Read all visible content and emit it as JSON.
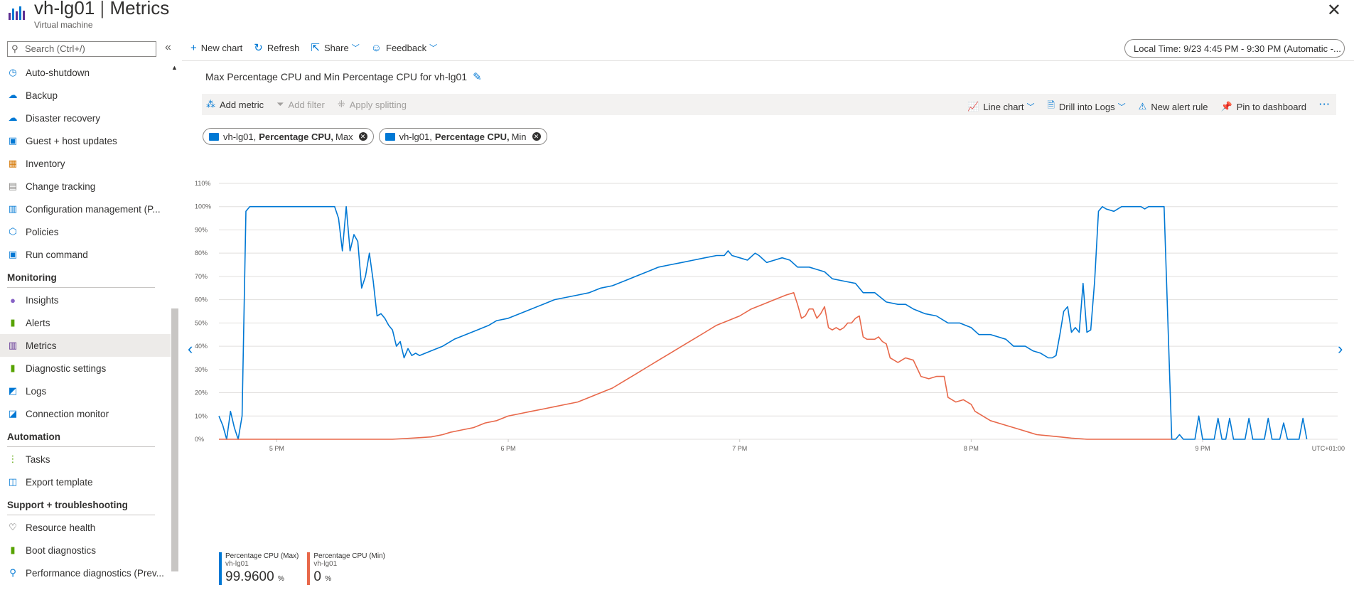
{
  "header": {
    "resource_name": "vh-lg01",
    "separator": "|",
    "page": "Metrics",
    "subtitle": "Virtual machine",
    "close_icon": "close-icon"
  },
  "sidebar": {
    "search_placeholder": "Search (Ctrl+/)",
    "collapse_glyph": "«",
    "items": [
      {
        "label": "Auto-shutdown",
        "icon": "clock-icon",
        "color": "#0078d4"
      },
      {
        "label": "Backup",
        "icon": "backup-cloud-icon",
        "color": "#0078d4"
      },
      {
        "label": "Disaster recovery",
        "icon": "cloud-recovery-icon",
        "color": "#0078d4"
      },
      {
        "label": "Guest + host updates",
        "icon": "monitor-update-icon",
        "color": "#0078d4"
      },
      {
        "label": "Inventory",
        "icon": "box-icon",
        "color": "#d47500"
      },
      {
        "label": "Change tracking",
        "icon": "document-icon",
        "color": "#8a8886"
      },
      {
        "label": "Configuration management (P...",
        "icon": "config-icon",
        "color": "#0078d4"
      },
      {
        "label": "Policies",
        "icon": "policy-icon",
        "color": "#0078d4"
      },
      {
        "label": "Run command",
        "icon": "terminal-icon",
        "color": "#0078d4"
      }
    ],
    "monitoring_label": "Monitoring",
    "monitoring_items": [
      {
        "label": "Insights",
        "icon": "insights-pin-icon",
        "color": "#8661c5"
      },
      {
        "label": "Alerts",
        "icon": "alerts-icon",
        "color": "#57a300"
      },
      {
        "label": "Metrics",
        "icon": "metrics-icon",
        "color": "#5c2d91",
        "selected": true
      },
      {
        "label": "Diagnostic settings",
        "icon": "diagnostic-icon",
        "color": "#57a300"
      },
      {
        "label": "Logs",
        "icon": "logs-icon",
        "color": "#0078d4"
      },
      {
        "label": "Connection monitor",
        "icon": "connection-icon",
        "color": "#0078d4"
      }
    ],
    "automation_label": "Automation",
    "automation_items": [
      {
        "label": "Tasks",
        "icon": "tasks-icon",
        "color": "#57a300"
      },
      {
        "label": "Export template",
        "icon": "export-icon",
        "color": "#0078d4"
      }
    ],
    "support_label": "Support + troubleshooting",
    "support_items": [
      {
        "label": "Resource health",
        "icon": "heart-icon",
        "color": "#323130"
      },
      {
        "label": "Boot diagnostics",
        "icon": "boot-icon",
        "color": "#57a300"
      },
      {
        "label": "Performance diagnostics (Prev...",
        "icon": "perf-icon",
        "color": "#0078d4"
      }
    ]
  },
  "toolbar": {
    "new_chart": "New chart",
    "refresh": "Refresh",
    "share": "Share",
    "feedback": "Feedback",
    "time_range": "Local Time: 9/23 4:45 PM - 9:30 PM (Automatic -..."
  },
  "chart_panel": {
    "title": "Max Percentage CPU and Min Percentage CPU for vh-lg01",
    "add_metric": "Add metric",
    "add_filter": "Add filter",
    "apply_splitting": "Apply splitting",
    "line_chart": "Line chart",
    "drill_logs": "Drill into Logs",
    "new_alert": "New alert rule",
    "pin": "Pin to dashboard",
    "more": "···"
  },
  "pills": [
    {
      "resource": "vh-lg01,",
      "metric": "Percentage CPU,",
      "agg": "Max"
    },
    {
      "resource": "vh-lg01,",
      "metric": "Percentage CPU,",
      "agg": "Min"
    }
  ],
  "legend": [
    {
      "name": "Percentage CPU (Max)",
      "resource": "vh-lg01",
      "value": "99.9600",
      "unit": "%",
      "color": "#0078d4"
    },
    {
      "name": "Percentage CPU (Min)",
      "resource": "vh-lg01",
      "value": "0",
      "unit": "%",
      "color": "#e8684a"
    }
  ],
  "chart_data": {
    "type": "line",
    "title": "Max Percentage CPU and Min Percentage CPU for vh-lg01",
    "x_unit": "minutes since 4:45 PM",
    "x_ticks": [
      {
        "x": 15,
        "label": "5 PM"
      },
      {
        "x": 75,
        "label": "6 PM"
      },
      {
        "x": 135,
        "label": "7 PM"
      },
      {
        "x": 195,
        "label": "8 PM"
      },
      {
        "x": 255,
        "label": "9 PM"
      }
    ],
    "x_extra_label": "UTC+01:00",
    "xlim": [
      0,
      290
    ],
    "y_ticks": [
      "0%",
      "10%",
      "20%",
      "30%",
      "40%",
      "50%",
      "60%",
      "70%",
      "80%",
      "90%",
      "100%",
      "110%"
    ],
    "ylim": [
      0,
      110
    ],
    "grid": true,
    "series": [
      {
        "name": "Percentage CPU (Max)",
        "color": "#0078d4",
        "points": [
          [
            0,
            10
          ],
          [
            1,
            6
          ],
          [
            2,
            0
          ],
          [
            3,
            12
          ],
          [
            4,
            5
          ],
          [
            5,
            0
          ],
          [
            6,
            10
          ],
          [
            7,
            98
          ],
          [
            8,
            100
          ],
          [
            30,
            100
          ],
          [
            31,
            95
          ],
          [
            32,
            81
          ],
          [
            33,
            100
          ],
          [
            34,
            81
          ],
          [
            35,
            88
          ],
          [
            36,
            85
          ],
          [
            37,
            65
          ],
          [
            38,
            70
          ],
          [
            39,
            80
          ],
          [
            40,
            68
          ],
          [
            41,
            53
          ],
          [
            42,
            54
          ],
          [
            43,
            52
          ],
          [
            44,
            49
          ],
          [
            45,
            47
          ],
          [
            46,
            40
          ],
          [
            47,
            42
          ],
          [
            48,
            35
          ],
          [
            49,
            39
          ],
          [
            50,
            36
          ],
          [
            51,
            37
          ],
          [
            52,
            36
          ],
          [
            55,
            38
          ],
          [
            58,
            40
          ],
          [
            61,
            43
          ],
          [
            64,
            45
          ],
          [
            67,
            47
          ],
          [
            70,
            49
          ],
          [
            72,
            51
          ],
          [
            75,
            52
          ],
          [
            78,
            54
          ],
          [
            81,
            56
          ],
          [
            84,
            58
          ],
          [
            87,
            60
          ],
          [
            90,
            61
          ],
          [
            93,
            62
          ],
          [
            96,
            63
          ],
          [
            99,
            65
          ],
          [
            102,
            66
          ],
          [
            105,
            68
          ],
          [
            108,
            70
          ],
          [
            111,
            72
          ],
          [
            114,
            74
          ],
          [
            117,
            75
          ],
          [
            120,
            76
          ],
          [
            123,
            77
          ],
          [
            126,
            78
          ],
          [
            129,
            79
          ],
          [
            131,
            79
          ],
          [
            132,
            81
          ],
          [
            133,
            79
          ],
          [
            135,
            78
          ],
          [
            137,
            77
          ],
          [
            139,
            80
          ],
          [
            140,
            79
          ],
          [
            142,
            76
          ],
          [
            144,
            77
          ],
          [
            146,
            78
          ],
          [
            148,
            77
          ],
          [
            150,
            74
          ],
          [
            153,
            74
          ],
          [
            155,
            73
          ],
          [
            157,
            72
          ],
          [
            159,
            69
          ],
          [
            162,
            68
          ],
          [
            165,
            67
          ],
          [
            167,
            63
          ],
          [
            170,
            63
          ],
          [
            173,
            59
          ],
          [
            176,
            58
          ],
          [
            178,
            58
          ],
          [
            180,
            56
          ],
          [
            183,
            54
          ],
          [
            186,
            53
          ],
          [
            189,
            50
          ],
          [
            192,
            50
          ],
          [
            195,
            48
          ],
          [
            197,
            45
          ],
          [
            200,
            45
          ],
          [
            202,
            44
          ],
          [
            204,
            43
          ],
          [
            206,
            40
          ],
          [
            209,
            40
          ],
          [
            211,
            38
          ],
          [
            213,
            37
          ],
          [
            215,
            35
          ],
          [
            216,
            35
          ],
          [
            217,
            36
          ],
          [
            218,
            45
          ],
          [
            219,
            55
          ],
          [
            220,
            57
          ],
          [
            221,
            46
          ],
          [
            222,
            48
          ],
          [
            223,
            46
          ],
          [
            224,
            67
          ],
          [
            225,
            46
          ],
          [
            226,
            47
          ],
          [
            227,
            68
          ],
          [
            228,
            98
          ],
          [
            229,
            100
          ],
          [
            230,
            99
          ],
          [
            232,
            98
          ],
          [
            234,
            100
          ],
          [
            239,
            100
          ],
          [
            240,
            99
          ],
          [
            241,
            100
          ],
          [
            245,
            100
          ],
          [
            247,
            0
          ],
          [
            248,
            0
          ],
          [
            249,
            2
          ],
          [
            250,
            0
          ],
          [
            253,
            0
          ],
          [
            254,
            10
          ],
          [
            255,
            0
          ],
          [
            258,
            0
          ],
          [
            259,
            9
          ],
          [
            260,
            0
          ],
          [
            261,
            0
          ],
          [
            262,
            9
          ],
          [
            263,
            0
          ],
          [
            266,
            0
          ],
          [
            267,
            9
          ],
          [
            268,
            0
          ],
          [
            271,
            0
          ],
          [
            272,
            9
          ],
          [
            273,
            0
          ],
          [
            275,
            0
          ],
          [
            276,
            7
          ],
          [
            277,
            0
          ],
          [
            280,
            0
          ],
          [
            281,
            9
          ],
          [
            282,
            0
          ]
        ]
      },
      {
        "name": "Percentage CPU (Min)",
        "color": "#e8684a",
        "points": [
          [
            0,
            0
          ],
          [
            45,
            0
          ],
          [
            50,
            0.5
          ],
          [
            55,
            1
          ],
          [
            58,
            2
          ],
          [
            60,
            3
          ],
          [
            63,
            4
          ],
          [
            66,
            5
          ],
          [
            69,
            7
          ],
          [
            72,
            8
          ],
          [
            75,
            10
          ],
          [
            78,
            11
          ],
          [
            81,
            12
          ],
          [
            84,
            13
          ],
          [
            87,
            14
          ],
          [
            90,
            15
          ],
          [
            93,
            16
          ],
          [
            96,
            18
          ],
          [
            99,
            20
          ],
          [
            102,
            22
          ],
          [
            105,
            25
          ],
          [
            108,
            28
          ],
          [
            111,
            31
          ],
          [
            114,
            34
          ],
          [
            117,
            37
          ],
          [
            120,
            40
          ],
          [
            123,
            43
          ],
          [
            126,
            46
          ],
          [
            129,
            49
          ],
          [
            132,
            51
          ],
          [
            135,
            53
          ],
          [
            138,
            56
          ],
          [
            141,
            58
          ],
          [
            144,
            60
          ],
          [
            147,
            62
          ],
          [
            149,
            63
          ],
          [
            150,
            58
          ],
          [
            151,
            52
          ],
          [
            152,
            53
          ],
          [
            153,
            56
          ],
          [
            154,
            56
          ],
          [
            155,
            52
          ],
          [
            156,
            54
          ],
          [
            157,
            57
          ],
          [
            158,
            48
          ],
          [
            159,
            47
          ],
          [
            160,
            48
          ],
          [
            161,
            47
          ],
          [
            162,
            48
          ],
          [
            163,
            50
          ],
          [
            164,
            50
          ],
          [
            165,
            52
          ],
          [
            166,
            53
          ],
          [
            167,
            44
          ],
          [
            168,
            43
          ],
          [
            170,
            43
          ],
          [
            171,
            44
          ],
          [
            172,
            42
          ],
          [
            173,
            41
          ],
          [
            174,
            35
          ],
          [
            175,
            34
          ],
          [
            176,
            33
          ],
          [
            178,
            35
          ],
          [
            180,
            34
          ],
          [
            182,
            27
          ],
          [
            184,
            26
          ],
          [
            186,
            27
          ],
          [
            188,
            27
          ],
          [
            189,
            18
          ],
          [
            191,
            16
          ],
          [
            193,
            17
          ],
          [
            195,
            15
          ],
          [
            196,
            12
          ],
          [
            198,
            10
          ],
          [
            200,
            8
          ],
          [
            202,
            7
          ],
          [
            204,
            6
          ],
          [
            206,
            5
          ],
          [
            208,
            4
          ],
          [
            210,
            3
          ],
          [
            212,
            2
          ],
          [
            215,
            1.5
          ],
          [
            218,
            1
          ],
          [
            221,
            0.5
          ],
          [
            225,
            0
          ],
          [
            247,
            0
          ]
        ]
      }
    ]
  }
}
